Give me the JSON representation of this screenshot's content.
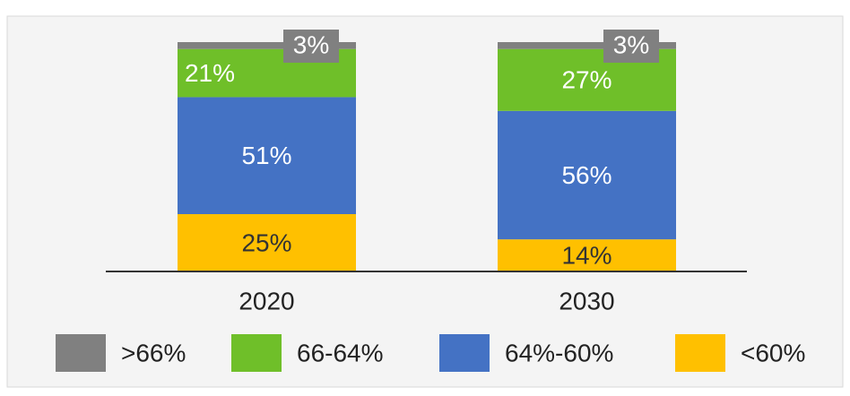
{
  "chart_data": {
    "type": "stacked_bar",
    "categories": [
      "2020",
      "2030"
    ],
    "series": [
      {
        "name": ">66%",
        "color": "#808080",
        "values": [
          3,
          3
        ],
        "value_labels": [
          "3%",
          "3%"
        ]
      },
      {
        "name": "66-64%",
        "color": "#6fbf29",
        "values": [
          21,
          27
        ],
        "value_labels": [
          "21%",
          "27%"
        ]
      },
      {
        "name": "64%-60%",
        "color": "#4472c4",
        "values": [
          51,
          56
        ],
        "value_labels": [
          "51%",
          "56%"
        ]
      },
      {
        "name": "<60%",
        "color": "#ffc000",
        "values": [
          25,
          14
        ],
        "value_labels": [
          "25%",
          "14%"
        ]
      }
    ],
    "ylim": [
      0,
      100
    ]
  }
}
